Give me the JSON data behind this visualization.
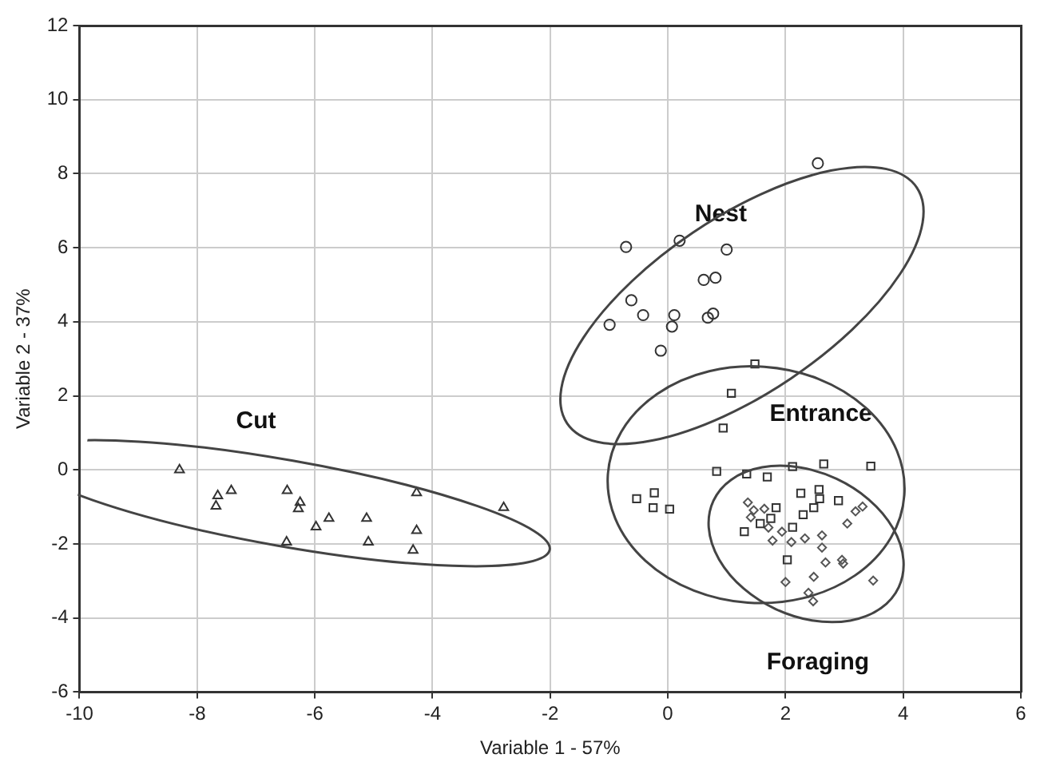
{
  "chart_data": {
    "type": "scatter",
    "xlabel": "Variable 1 - 57%",
    "ylabel": "Variable 2 - 37%",
    "xlim": [
      -10,
      6
    ],
    "xticks": [
      -10,
      -8,
      -6,
      -4,
      -2,
      0,
      2,
      4,
      6
    ],
    "ylim": [
      -6,
      12
    ],
    "yticks": [
      -6,
      -4,
      -2,
      0,
      2,
      4,
      6,
      8,
      10,
      12
    ],
    "grid": true,
    "series": [
      {
        "name": "Cut",
        "color": "#333333",
        "marker": "triangle",
        "x": [
          -8.3,
          -7.65,
          -7.68,
          -7.42,
          -6.47,
          -6.25,
          -6.28,
          -5.98,
          -5.76,
          -6.48,
          -5.12,
          -5.09,
          -4.27,
          -4.27,
          -4.33,
          -2.79
        ],
        "values": [
          0,
          -0.7,
          -0.98,
          -0.56,
          -0.56,
          -0.88,
          -1.05,
          -1.54,
          -1.31,
          -1.95,
          -1.31,
          -1.95,
          -0.62,
          -1.64,
          -2.17,
          -1.02
        ]
      },
      {
        "name": "Nest",
        "color": "#333333",
        "marker": "circle",
        "x": [
          -0.71,
          0.2,
          1.0,
          0.61,
          0.81,
          -0.62,
          -0.42,
          0.11,
          0.07,
          0.68,
          0.77,
          -0.99,
          -0.12,
          2.55
        ],
        "values": [
          6.02,
          6.19,
          5.95,
          5.13,
          5.19,
          4.58,
          4.18,
          4.18,
          3.87,
          4.11,
          4.22,
          3.92,
          3.22,
          8.28
        ]
      },
      {
        "name": "Entrance",
        "color": "#333333",
        "marker": "square",
        "x": [
          1.48,
          1.08,
          0.94,
          0.83,
          1.34,
          1.69,
          2.12,
          2.65,
          3.45,
          -0.53,
          -0.23,
          -0.25,
          0.03,
          2.26,
          2.57,
          2.58,
          2.9,
          2.48,
          2.3,
          1.84,
          1.75,
          1.57,
          2.12,
          1.3,
          2.03
        ],
        "values": [
          2.86,
          2.07,
          1.13,
          -0.04,
          -0.11,
          -0.19,
          0.09,
          0.16,
          0.1,
          -0.78,
          -0.62,
          -1.02,
          -1.06,
          -0.63,
          -0.53,
          -0.78,
          -0.83,
          -1.02,
          -1.21,
          -1.02,
          -1.31,
          -1.45,
          -1.55,
          -1.67,
          -2.43
        ]
      },
      {
        "name": "Foraging",
        "color": "#555555",
        "marker": "diamond",
        "x": [
          1.36,
          1.46,
          1.64,
          1.41,
          1.71,
          1.78,
          1.94,
          2.1,
          2.33,
          2.62,
          2.62,
          2.68,
          2.96,
          2.98,
          2.48,
          2.0,
          2.39,
          2.47,
          3.49,
          3.05,
          3.19,
          3.31
        ],
        "values": [
          -0.88,
          -1.09,
          -1.05,
          -1.28,
          -1.56,
          -1.91,
          -1.67,
          -1.95,
          -1.85,
          -1.77,
          -2.1,
          -2.5,
          -2.43,
          -2.53,
          -2.89,
          -3.03,
          -3.32,
          -3.55,
          -2.99,
          -1.45,
          -1.12,
          -0.99
        ]
      }
    ]
  }
}
